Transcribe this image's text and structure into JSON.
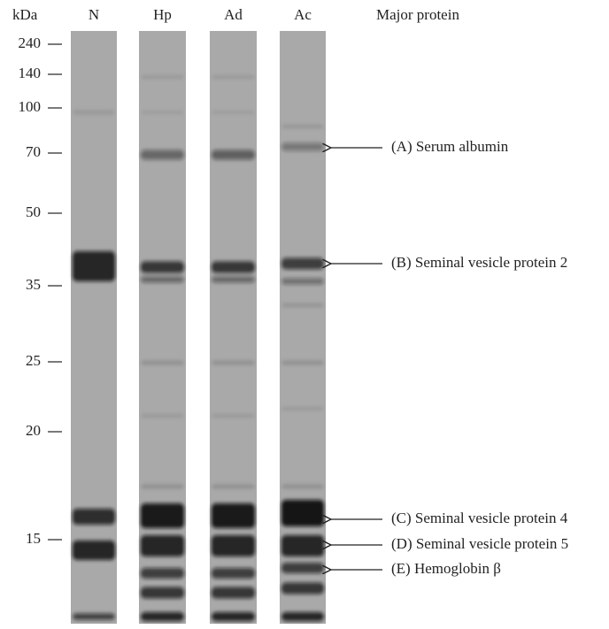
{
  "axis_label": "kDa",
  "markers": [
    "240",
    "140",
    "100",
    "70",
    "50",
    "35",
    "25",
    "20",
    "15"
  ],
  "lanes": [
    "N",
    "Hp",
    "Ad",
    "Ac"
  ],
  "header": "Major protein",
  "annotations": [
    "(A) Serum albumin",
    "(B) Seminal vesicle protein 2",
    "(C) Seminal vesicle protein 4",
    "(D) Seminal vesicle protein 5",
    "(E) Hemoglobin β"
  ]
}
